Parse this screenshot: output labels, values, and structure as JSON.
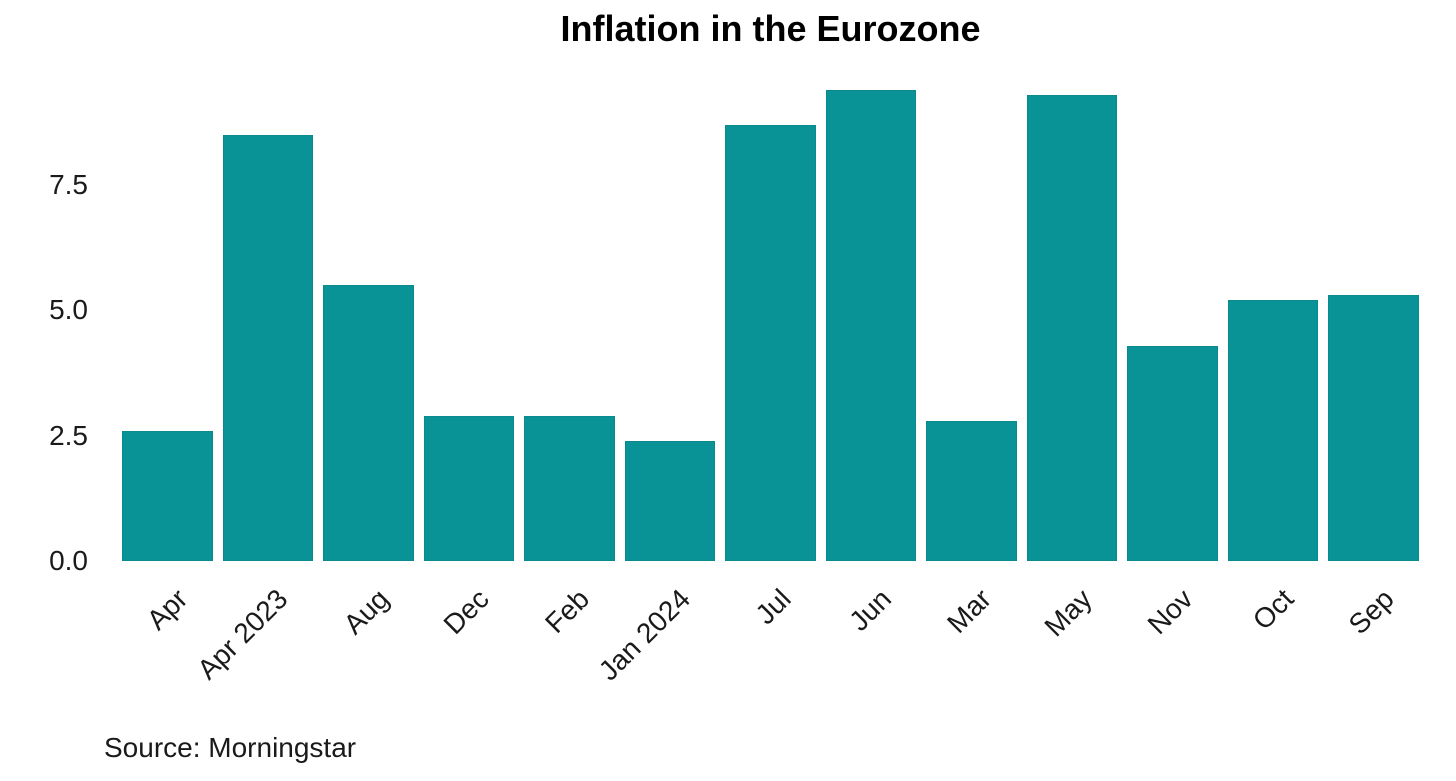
{
  "chart_data": {
    "type": "bar",
    "title": "Inflation in the Eurozone",
    "caption": "Source: Morningstar",
    "categories": [
      "Apr",
      "Apr 2023",
      "Aug",
      "Dec",
      "Feb",
      "Jan 2024",
      "Jul",
      "Jun",
      "Mar",
      "May",
      "Nov",
      "Oct",
      "Sep"
    ],
    "values": [
      2.6,
      8.5,
      5.5,
      2.9,
      2.9,
      2.4,
      8.7,
      9.4,
      2.8,
      9.3,
      4.3,
      5.2,
      5.3
    ],
    "xlabel": "",
    "ylabel": "",
    "yticks": [
      "0.0",
      "2.5",
      "5.0",
      "7.5"
    ],
    "ytick_values": [
      0,
      2.5,
      5,
      7.5
    ],
    "ylim": [
      0,
      9.5
    ],
    "grid": false,
    "legend": false,
    "x_label_rotation": -45,
    "bar_color": "#0A9396",
    "bar_border_color": "#0A8A8D",
    "title_color": "#000000",
    "axis_text_color": "#1a1a1a",
    "background_color": "#ffffff"
  }
}
